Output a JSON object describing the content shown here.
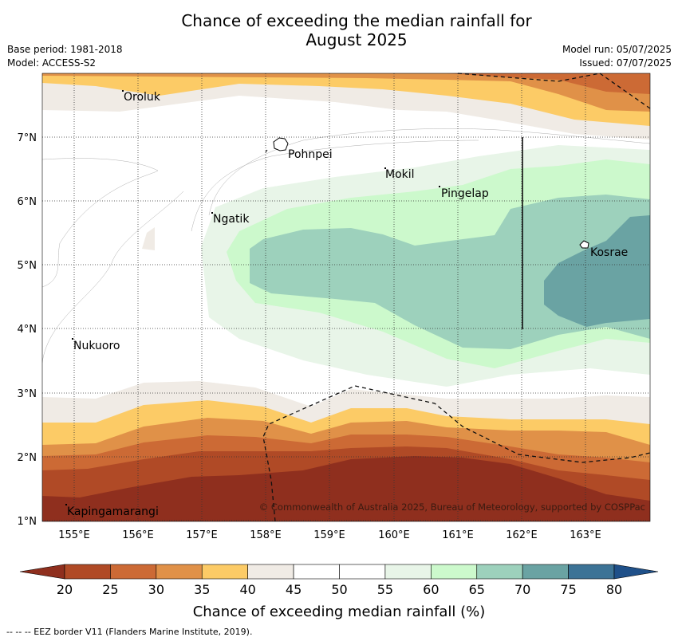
{
  "title_line1": "Chance of exceeding the median rainfall for",
  "title_line2": "August 2025",
  "base_period": "Base period: 1981-2018",
  "model": "Model: ACCESS-S2",
  "model_run": "Model run: 05/07/2025",
  "issued": "Issued: 07/07/2025",
  "copyright": "© Commonwealth of Australia 2025, Bureau of Meteorology, supported by COSPPac",
  "footnote": "--  --  -- EEZ border V11 (Flanders Marine Institute, 2019).",
  "map": {
    "lon_ticks": [
      "155°E",
      "156°E",
      "157°E",
      "158°E",
      "159°E",
      "160°E",
      "161°E",
      "162°E",
      "163°E"
    ],
    "lat_ticks": [
      "7°N",
      "6°N",
      "5°N",
      "4°N",
      "3°N",
      "2°N",
      "1°N"
    ],
    "places": [
      {
        "name": "Oroluk"
      },
      {
        "name": "Pohnpei"
      },
      {
        "name": "Mokil"
      },
      {
        "name": "Pingelap"
      },
      {
        "name": "Ngatik"
      },
      {
        "name": "Kosrae"
      },
      {
        "name": "Nukuoro"
      },
      {
        "name": "Kapingamarangi"
      }
    ]
  },
  "colorbar": {
    "label": "Chance of exceeding median rainfall (%)",
    "ticks": [
      "20",
      "25",
      "30",
      "35",
      "40",
      "45",
      "50",
      "55",
      "60",
      "65",
      "70",
      "75",
      "80"
    ],
    "colors": [
      "#8f2f1e",
      "#b04a26",
      "#cc6a35",
      "#e09148",
      "#fccb66",
      "#f0ebe5",
      "#ffffff",
      "#ffffff",
      "#e8f5e8",
      "#ccf9cc",
      "#9dd1bc",
      "#6aa3a3",
      "#3c7396",
      "#1f5089"
    ]
  }
}
